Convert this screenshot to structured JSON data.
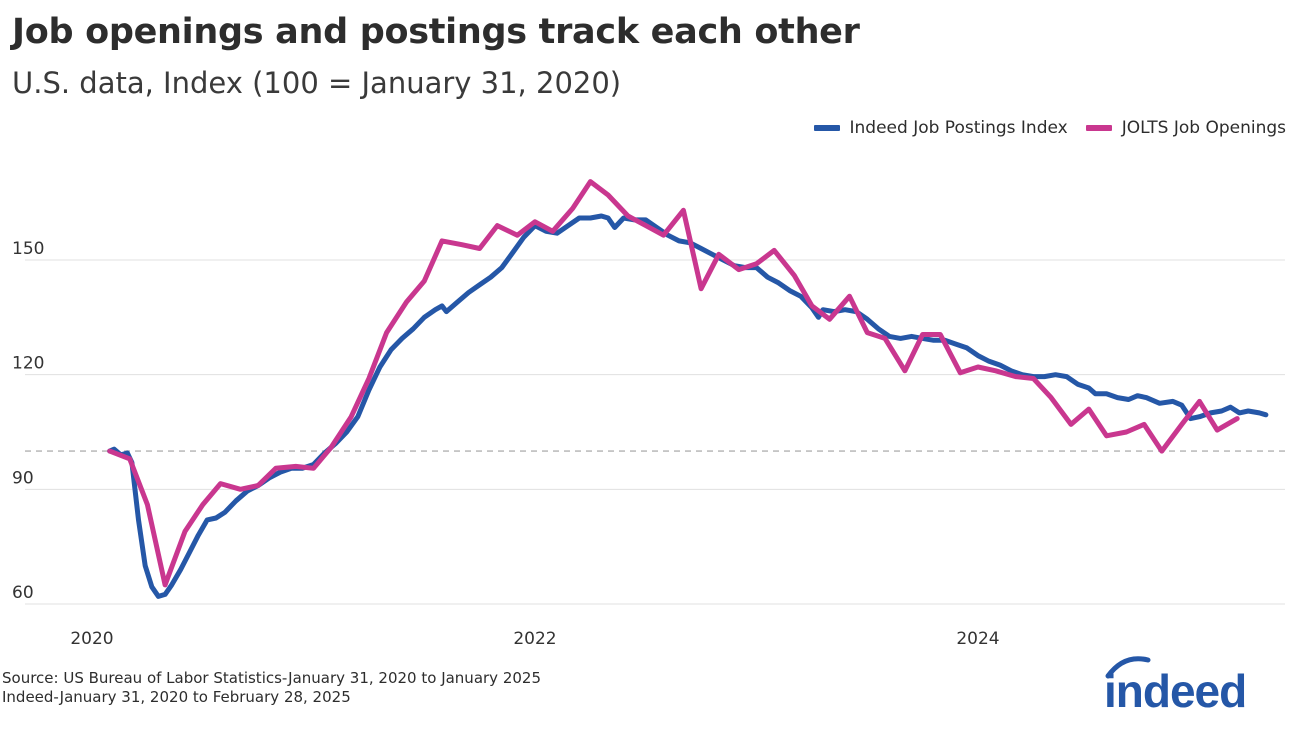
{
  "chart_data": {
    "type": "line",
    "title": "Job openings and postings track each other",
    "subtitle": "U.S. data, Index (100 = January 31, 2020)",
    "xlabel": "",
    "ylabel": "",
    "xlim": [
      2020.0,
      2025.5
    ],
    "ylim": [
      57,
      175
    ],
    "x_ticks": [
      2020,
      2022,
      2024
    ],
    "x_tick_labels": [
      "2020",
      "2022",
      "2024"
    ],
    "y_ticks": [
      60,
      90,
      120,
      150
    ],
    "y_tick_labels": [
      "60",
      "90",
      "120",
      "150"
    ],
    "reference_line": {
      "y": 100,
      "style": "dashed"
    },
    "legend_position": "top-right",
    "series": [
      {
        "name": "Indeed Job Postings Index",
        "color": "#2557a7",
        "points": [
          [
            2020.08,
            100
          ],
          [
            2020.1,
            100.5
          ],
          [
            2020.13,
            99
          ],
          [
            2020.16,
            99.5
          ],
          [
            2020.18,
            97
          ],
          [
            2020.21,
            82
          ],
          [
            2020.24,
            70
          ],
          [
            2020.27,
            64.5
          ],
          [
            2020.3,
            62
          ],
          [
            2020.33,
            62.5
          ],
          [
            2020.36,
            65
          ],
          [
            2020.4,
            69
          ],
          [
            2020.44,
            73.5
          ],
          [
            2020.48,
            78
          ],
          [
            2020.52,
            82
          ],
          [
            2020.56,
            82.5
          ],
          [
            2020.6,
            84
          ],
          [
            2020.65,
            87
          ],
          [
            2020.7,
            89.5
          ],
          [
            2020.75,
            91
          ],
          [
            2020.8,
            93
          ],
          [
            2020.85,
            94.5
          ],
          [
            2020.9,
            95.5
          ],
          [
            2020.95,
            95.5
          ],
          [
            2021.0,
            96.5
          ],
          [
            2021.05,
            99.5
          ],
          [
            2021.1,
            102
          ],
          [
            2021.15,
            105
          ],
          [
            2021.2,
            109
          ],
          [
            2021.25,
            116
          ],
          [
            2021.3,
            122
          ],
          [
            2021.35,
            126.5
          ],
          [
            2021.4,
            129.5
          ],
          [
            2021.45,
            132
          ],
          [
            2021.5,
            135
          ],
          [
            2021.55,
            137
          ],
          [
            2021.58,
            138
          ],
          [
            2021.6,
            136.5
          ],
          [
            2021.65,
            139
          ],
          [
            2021.7,
            141.5
          ],
          [
            2021.75,
            143.5
          ],
          [
            2021.8,
            145.5
          ],
          [
            2021.85,
            148
          ],
          [
            2021.9,
            152
          ],
          [
            2021.95,
            156
          ],
          [
            2022.0,
            159
          ],
          [
            2022.05,
            157.5
          ],
          [
            2022.1,
            157
          ],
          [
            2022.15,
            159
          ],
          [
            2022.2,
            161
          ],
          [
            2022.25,
            161
          ],
          [
            2022.3,
            161.5
          ],
          [
            2022.33,
            161
          ],
          [
            2022.36,
            158.5
          ],
          [
            2022.4,
            161
          ],
          [
            2022.45,
            160.5
          ],
          [
            2022.5,
            160.5
          ],
          [
            2022.55,
            158.5
          ],
          [
            2022.6,
            156.5
          ],
          [
            2022.65,
            155
          ],
          [
            2022.7,
            154.5
          ],
          [
            2022.75,
            153
          ],
          [
            2022.8,
            151.5
          ],
          [
            2022.85,
            150
          ],
          [
            2022.9,
            148.5
          ],
          [
            2022.95,
            148
          ],
          [
            2023.0,
            148
          ],
          [
            2023.05,
            145.5
          ],
          [
            2023.1,
            144
          ],
          [
            2023.15,
            142
          ],
          [
            2023.2,
            140.5
          ],
          [
            2023.25,
            137.5
          ],
          [
            2023.28,
            135
          ],
          [
            2023.3,
            137
          ],
          [
            2023.35,
            136.5
          ],
          [
            2023.4,
            137
          ],
          [
            2023.45,
            136.5
          ],
          [
            2023.5,
            134.5
          ],
          [
            2023.55,
            132
          ],
          [
            2023.6,
            130
          ],
          [
            2023.65,
            129.5
          ],
          [
            2023.7,
            130
          ],
          [
            2023.75,
            129.5
          ],
          [
            2023.8,
            129
          ],
          [
            2023.85,
            129
          ],
          [
            2023.9,
            128
          ],
          [
            2023.95,
            127
          ],
          [
            2024.0,
            125
          ],
          [
            2024.05,
            123.5
          ],
          [
            2024.1,
            122.5
          ],
          [
            2024.15,
            121
          ],
          [
            2024.2,
            120
          ],
          [
            2024.25,
            119.5
          ],
          [
            2024.3,
            119.5
          ],
          [
            2024.35,
            120
          ],
          [
            2024.4,
            119.5
          ],
          [
            2024.45,
            117.5
          ],
          [
            2024.5,
            116.5
          ],
          [
            2024.53,
            115
          ],
          [
            2024.58,
            115
          ],
          [
            2024.63,
            114
          ],
          [
            2024.68,
            113.5
          ],
          [
            2024.72,
            114.5
          ],
          [
            2024.76,
            114
          ],
          [
            2024.82,
            112.5
          ],
          [
            2024.88,
            113
          ],
          [
            2024.92,
            112
          ],
          [
            2024.96,
            108.5
          ],
          [
            2025.0,
            109
          ],
          [
            2025.05,
            110
          ],
          [
            2025.1,
            110.5
          ],
          [
            2025.14,
            111.5
          ],
          [
            2025.18,
            110
          ],
          [
            2025.22,
            110.5
          ],
          [
            2025.27,
            110
          ],
          [
            2025.3,
            109.5
          ]
        ]
      },
      {
        "name": "JOLTS Job Openings",
        "color": "#c9378f",
        "points": [
          [
            2020.08,
            100
          ],
          [
            2020.17,
            98
          ],
          [
            2020.25,
            86
          ],
          [
            2020.33,
            65
          ],
          [
            2020.42,
            79
          ],
          [
            2020.5,
            86
          ],
          [
            2020.58,
            91.5
          ],
          [
            2020.67,
            90
          ],
          [
            2020.75,
            91
          ],
          [
            2020.83,
            95.5
          ],
          [
            2020.92,
            96
          ],
          [
            2021.0,
            95.5
          ],
          [
            2021.08,
            101
          ],
          [
            2021.17,
            109
          ],
          [
            2021.25,
            119
          ],
          [
            2021.33,
            131
          ],
          [
            2021.42,
            139
          ],
          [
            2021.5,
            144.5
          ],
          [
            2021.58,
            155
          ],
          [
            2021.67,
            154
          ],
          [
            2021.75,
            153
          ],
          [
            2021.83,
            159
          ],
          [
            2021.92,
            156.5
          ],
          [
            2022.0,
            160
          ],
          [
            2022.08,
            157.5
          ],
          [
            2022.17,
            163.5
          ],
          [
            2022.25,
            170.5
          ],
          [
            2022.33,
            167
          ],
          [
            2022.42,
            161.5
          ],
          [
            2022.5,
            159
          ],
          [
            2022.58,
            156.5
          ],
          [
            2022.67,
            163
          ],
          [
            2022.75,
            142.5
          ],
          [
            2022.83,
            151.5
          ],
          [
            2022.92,
            147.5
          ],
          [
            2023.0,
            149
          ],
          [
            2023.08,
            152.5
          ],
          [
            2023.17,
            146
          ],
          [
            2023.25,
            138
          ],
          [
            2023.33,
            134.5
          ],
          [
            2023.42,
            140.5
          ],
          [
            2023.5,
            131
          ],
          [
            2023.58,
            129.5
          ],
          [
            2023.67,
            121
          ],
          [
            2023.75,
            130.5
          ],
          [
            2023.83,
            130.5
          ],
          [
            2023.92,
            120.5
          ],
          [
            2024.0,
            122
          ],
          [
            2024.08,
            121
          ],
          [
            2024.17,
            119.5
          ],
          [
            2024.25,
            119
          ],
          [
            2024.33,
            114
          ],
          [
            2024.42,
            107
          ],
          [
            2024.5,
            111
          ],
          [
            2024.58,
            104
          ],
          [
            2024.67,
            105
          ],
          [
            2024.75,
            107
          ],
          [
            2024.83,
            100
          ],
          [
            2024.92,
            107
          ],
          [
            2025.0,
            113
          ],
          [
            2025.08,
            105.5
          ],
          [
            2025.17,
            108.5
          ]
        ]
      }
    ]
  },
  "source": {
    "line1": "Source: US Bureau of Labor Statistics-January 31, 2020 to January 2025",
    "line2": "Indeed-January 31, 2020 to February 28, 2025"
  },
  "logo": {
    "text": "indeed",
    "color": "#2557a7",
    "arc_color": "#2557a7"
  }
}
